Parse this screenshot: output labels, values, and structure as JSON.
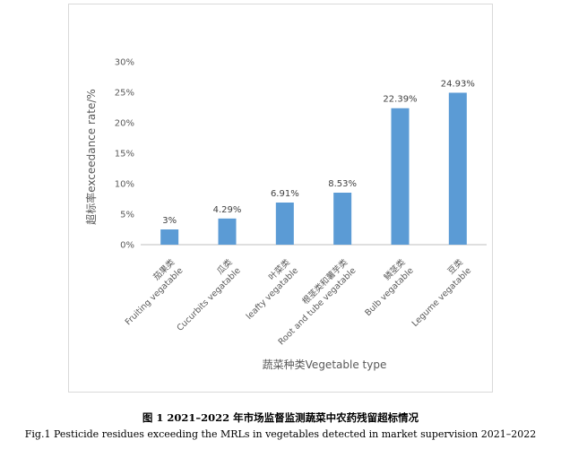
{
  "chart_data": {
    "type": "bar",
    "categories": [
      {
        "cn": "茄果类",
        "en": "Fruiting vegatable"
      },
      {
        "cn": "瓜类",
        "en": "Cucurbits vegatable"
      },
      {
        "cn": "叶菜类",
        "en": "leafty vegatable"
      },
      {
        "cn": "根茎类和薯芋类",
        "en": "Root and tube vegatable"
      },
      {
        "cn": "鳞茎类",
        "en": "Bulb vegatable"
      },
      {
        "cn": "豆类",
        "en": "Legume vegatable"
      }
    ],
    "values": [
      2.5,
      4.29,
      6.91,
      8.53,
      22.39,
      24.93
    ],
    "data_labels": [
      "3%",
      "4.29%",
      "6.91%",
      "8.53%",
      "22.39%",
      "24.93%"
    ],
    "ylim": [
      0,
      30
    ],
    "yticks": [
      {
        "value": 0,
        "label": "0%"
      },
      {
        "value": 5,
        "label": "5%"
      },
      {
        "value": 10,
        "label": "10%"
      },
      {
        "value": 15,
        "label": "15%"
      },
      {
        "value": 20,
        "label": "20%"
      },
      {
        "value": 25,
        "label": "25%"
      },
      {
        "value": 30,
        "label": "30%"
      }
    ],
    "ylabel": "超标率exceedance rate/%",
    "xlabel": "蔬菜种类Vegetable type",
    "grid": false,
    "bar_color": "#5b9bd5"
  },
  "caption": {
    "cn": "图 1 2021–2022 年市场监督监测蔬菜中农药残留超标情况",
    "en": "Fig.1 Pesticide residues exceeding the MRLs in vegetables detected in market supervision 2021–2022"
  }
}
